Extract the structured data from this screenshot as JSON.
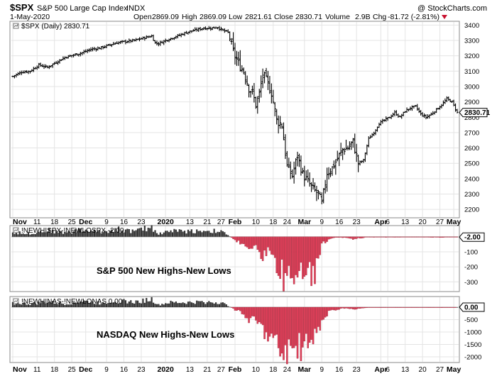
{
  "header": {
    "symbol": "$SPX",
    "name": "S&P 500 Large Cap Index",
    "exchange": "INDX",
    "watermark": "@ StockCharts.com",
    "date": "1-May-2020",
    "open_label": "Open",
    "open": "2869.09",
    "high_label": "High",
    "high": "2869.09",
    "low_label": "Low",
    "low": "2821.61",
    "close_label": "Close",
    "close": "2830.71",
    "volume_label": "Volume",
    "volume": "2.9B",
    "chg_label": "Chg",
    "chg": "-81.72 (-2.81%)"
  },
  "colors": {
    "bar": "#000000",
    "positive": "#333333",
    "negative": "#e0405a",
    "grid": "#e4e4e4"
  },
  "chart_data": [
    {
      "type": "ohlc",
      "legend": "$SPX (Daily) 2830.71",
      "last_value": "2830.71",
      "ylim": [
        2150,
        3420
      ],
      "yticks": [
        2200,
        2300,
        2400,
        2500,
        2600,
        2700,
        2800,
        2900,
        3000,
        3100,
        3200,
        3300,
        3400
      ],
      "start_close": 3066,
      "trend": [
        [
          0,
          3066
        ],
        [
          5,
          3094
        ],
        [
          10,
          3100
        ],
        [
          15,
          3140
        ],
        [
          20,
          3125
        ],
        [
          25,
          3158
        ],
        [
          30,
          3190
        ],
        [
          35,
          3205
        ],
        [
          40,
          3220
        ],
        [
          45,
          3242
        ],
        [
          50,
          3250
        ],
        [
          55,
          3268
        ],
        [
          60,
          3285
        ],
        [
          63,
          3290
        ],
        [
          70,
          3300
        ],
        [
          75,
          3315
        ],
        [
          80,
          3329
        ],
        [
          82,
          3283
        ],
        [
          84,
          3280
        ],
        [
          88,
          3300
        ],
        [
          96,
          3334
        ],
        [
          100,
          3352
        ],
        [
          106,
          3370
        ],
        [
          110,
          3380
        ],
        [
          114,
          3380
        ],
        [
          118,
          3386
        ],
        [
          120,
          3370
        ],
        [
          124,
          3352
        ],
        [
          127,
          3225
        ],
        [
          130,
          3150
        ],
        [
          133,
          3100
        ],
        [
          136,
          2990
        ],
        [
          138,
          2960
        ],
        [
          140,
          2880
        ],
        [
          142,
          2950
        ],
        [
          144,
          3080
        ],
        [
          146,
          3040
        ],
        [
          149,
          2960
        ],
        [
          152,
          2780
        ],
        [
          155,
          2750
        ],
        [
          158,
          2480
        ],
        [
          161,
          2420
        ],
        [
          164,
          2550
        ],
        [
          167,
          2430
        ],
        [
          170,
          2380
        ],
        [
          173,
          2330
        ],
        [
          176,
          2300
        ],
        [
          178,
          2235
        ],
        [
          181,
          2440
        ],
        [
          184,
          2470
        ],
        [
          187,
          2530
        ],
        [
          190,
          2590
        ],
        [
          193,
          2600
        ],
        [
          196,
          2640
        ],
        [
          199,
          2500
        ],
        [
          202,
          2520
        ],
        [
          205,
          2660
        ],
        [
          208,
          2700
        ],
        [
          211,
          2760
        ],
        [
          214,
          2780
        ],
        [
          217,
          2800
        ],
        [
          220,
          2830
        ],
        [
          223,
          2800
        ],
        [
          226,
          2840
        ],
        [
          229,
          2860
        ],
        [
          232,
          2870
        ],
        [
          235,
          2820
        ],
        [
          238,
          2800
        ],
        [
          241,
          2820
        ],
        [
          244,
          2850
        ],
        [
          247,
          2880
        ],
        [
          250,
          2920
        ],
        [
          253,
          2900
        ],
        [
          256,
          2830
        ]
      ]
    },
    {
      "type": "bar",
      "legend": "!NEWHISPX-!NEWLOSPX -2.00",
      "annotation": "S&P 500 New Highs-New Lows",
      "last_value": "-2.00",
      "ylim": [
        -360,
        70
      ],
      "yticks": [
        0,
        -100,
        -200,
        -300
      ],
      "ytick_labels": [
        "",
        "-100",
        "-200",
        "-300"
      ],
      "points": [
        [
          0,
          30
        ],
        [
          10,
          25
        ],
        [
          20,
          45
        ],
        [
          30,
          30
        ],
        [
          40,
          50
        ],
        [
          50,
          35
        ],
        [
          60,
          55
        ],
        [
          70,
          40
        ],
        [
          80,
          70
        ],
        [
          84,
          20
        ],
        [
          90,
          45
        ],
        [
          100,
          40
        ],
        [
          110,
          45
        ],
        [
          120,
          40
        ],
        [
          124,
          10
        ],
        [
          128,
          -20
        ],
        [
          132,
          -60
        ],
        [
          136,
          -80
        ],
        [
          140,
          -50
        ],
        [
          144,
          -140
        ],
        [
          148,
          -90
        ],
        [
          152,
          -200
        ],
        [
          156,
          -290
        ],
        [
          160,
          -300
        ],
        [
          164,
          -240
        ],
        [
          168,
          -320
        ],
        [
          172,
          -270
        ],
        [
          176,
          -240
        ],
        [
          178,
          -60
        ],
        [
          182,
          -15
        ],
        [
          186,
          -5
        ],
        [
          192,
          -5
        ],
        [
          196,
          -15
        ],
        [
          200,
          -10
        ],
        [
          204,
          -3
        ],
        [
          215,
          -3
        ],
        [
          230,
          -2
        ],
        [
          245,
          -4
        ],
        [
          256,
          -2
        ]
      ]
    },
    {
      "type": "bar",
      "legend": "!NEWHINAS-!NEWLONAS 0.00",
      "annotation": "NASDAQ New Highs-New Lows",
      "last_value": "0.00",
      "ylim": [
        -2200,
        400
      ],
      "yticks": [
        0,
        -500,
        -1000,
        -1500,
        -2000
      ],
      "ytick_labels": [
        "",
        "-500",
        "-1000",
        "-1500",
        "-2000"
      ],
      "points": [
        [
          0,
          180
        ],
        [
          10,
          140
        ],
        [
          20,
          220
        ],
        [
          30,
          150
        ],
        [
          40,
          260
        ],
        [
          50,
          180
        ],
        [
          60,
          280
        ],
        [
          70,
          220
        ],
        [
          80,
          340
        ],
        [
          84,
          100
        ],
        [
          90,
          200
        ],
        [
          100,
          200
        ],
        [
          110,
          230
        ],
        [
          120,
          200
        ],
        [
          124,
          60
        ],
        [
          128,
          -100
        ],
        [
          132,
          -300
        ],
        [
          136,
          -500
        ],
        [
          140,
          -600
        ],
        [
          144,
          -900
        ],
        [
          148,
          -1300
        ],
        [
          152,
          -1600
        ],
        [
          156,
          -2000
        ],
        [
          160,
          -1800
        ],
        [
          164,
          -1700
        ],
        [
          168,
          -1900
        ],
        [
          172,
          -1500
        ],
        [
          176,
          -1100
        ],
        [
          178,
          -600
        ],
        [
          182,
          -200
        ],
        [
          186,
          -100
        ],
        [
          192,
          -40
        ],
        [
          196,
          -100
        ],
        [
          200,
          -60
        ],
        [
          204,
          -20
        ],
        [
          215,
          -10
        ],
        [
          230,
          -10
        ],
        [
          245,
          -20
        ],
        [
          256,
          0
        ]
      ]
    }
  ],
  "xaxis": {
    "total_bars": 257,
    "ticks": [
      {
        "label": "Nov",
        "i": 0,
        "major": true
      },
      {
        "label": "11",
        "i": 7
      },
      {
        "label": "18",
        "i": 12
      },
      {
        "label": "25",
        "i": 17
      },
      {
        "label": "Dec",
        "i": 21,
        "major": true
      },
      {
        "label": "9",
        "i": 27
      },
      {
        "label": "16",
        "i": 32
      },
      {
        "label": "23",
        "i": 37
      },
      {
        "label": "2020",
        "i": 44,
        "major": true
      },
      {
        "label": "13",
        "i": 51
      },
      {
        "label": "21",
        "i": 56
      },
      {
        "label": "27",
        "i": 60
      },
      {
        "label": "Feb",
        "i": 64,
        "major": true
      },
      {
        "label": "10",
        "i": 70
      },
      {
        "label": "18",
        "i": 75
      },
      {
        "label": "24",
        "i": 79
      },
      {
        "label": "Mar",
        "i": 84,
        "major": true
      },
      {
        "label": "9",
        "i": 89
      },
      {
        "label": "16",
        "i": 94
      },
      {
        "label": "23",
        "i": 99
      },
      {
        "label": "Apr",
        "i": 106,
        "major": true
      },
      {
        "label": "6",
        "i": 108
      },
      {
        "label": "13",
        "i": 113
      },
      {
        "label": "20",
        "i": 118
      },
      {
        "label": "27",
        "i": 123
      },
      {
        "label": "May",
        "i": 127,
        "major": true
      }
    ]
  }
}
